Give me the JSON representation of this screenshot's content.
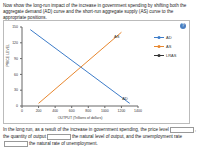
{
  "instructions": "Now show the long-run impact of the increase in government spending by shifting both the aggregate demand (AD) curve and the short-run aggregate supply (AS) curve to the appropriate positions.",
  "help_icon": "?",
  "tool_palette": [
    {
      "label": "AD",
      "color": "#3d7cc9"
    },
    {
      "label": "AS",
      "color": "#e8872e"
    },
    {
      "label": "LRAS",
      "color": "#333333"
    }
  ],
  "chart_data": {
    "type": "line",
    "x_label": "OUTPUT (Trillions of dollars)",
    "y_label": "PRICE LEVEL",
    "xlim": [
      0,
      1400
    ],
    "xticks": [
      0,
      200,
      400,
      600,
      800,
      1000,
      1200,
      1400
    ],
    "ylim": [
      0,
      150
    ],
    "yticks": [
      0,
      30,
      60,
      90,
      120,
      150
    ],
    "grid": false,
    "series": [
      {
        "name": "AD",
        "color": "#3d7cc9",
        "x": [
          100,
          1300
        ],
        "values": [
          145,
          5
        ]
      },
      {
        "name": "AS",
        "color": "#e8872e",
        "x": [
          200,
          1200
        ],
        "values": [
          5,
          140
        ]
      }
    ]
  },
  "question": {
    "parts": [
      "In the long run, as a result of the increase in government spending, the price level",
      ", the quantity of output",
      "the natural level of output, and the unemployment rate",
      "the natural rate of unemployment."
    ]
  }
}
